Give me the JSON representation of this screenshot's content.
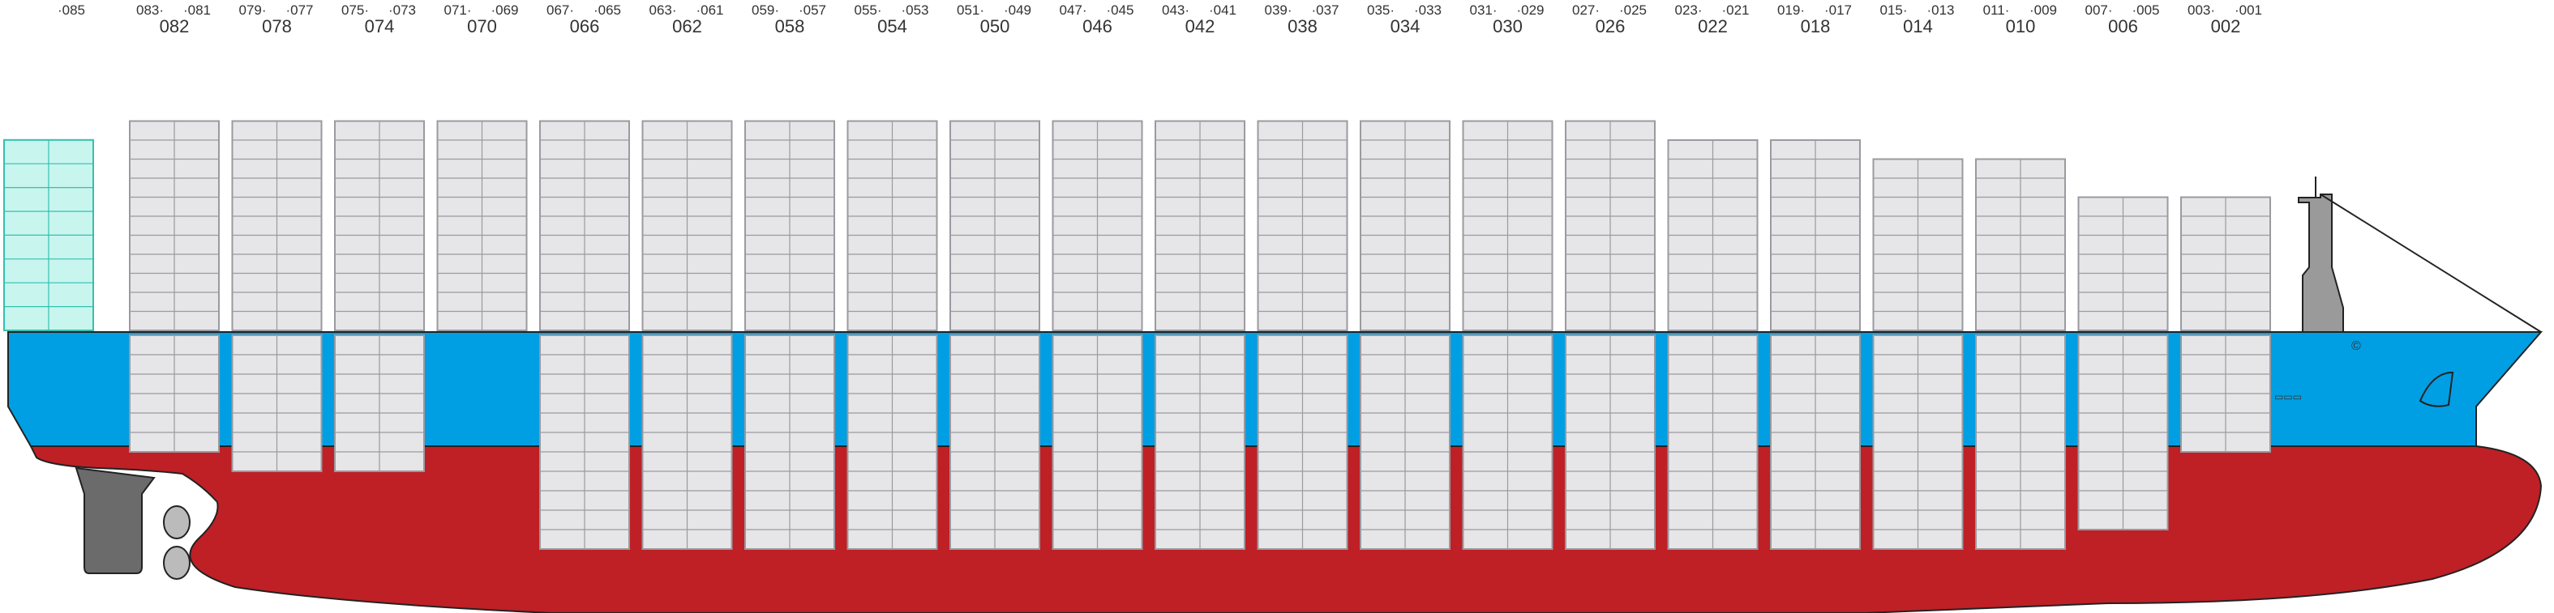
{
  "bays": [
    {
      "right": "·085"
    },
    {
      "left": "083·",
      "right": "·081",
      "label": "082"
    },
    {
      "left": "079·",
      "right": "·077",
      "label": "078"
    },
    {
      "left": "075·",
      "right": "·073",
      "label": "074"
    },
    {
      "left": "071·",
      "right": "·069",
      "label": "070"
    },
    {
      "left": "067·",
      "right": "·065",
      "label": "066"
    },
    {
      "left": "063·",
      "right": "·061",
      "label": "062"
    },
    {
      "left": "059·",
      "right": "·057",
      "label": "058"
    },
    {
      "left": "055·",
      "right": "·053",
      "label": "054"
    },
    {
      "left": "051·",
      "right": "·049",
      "label": "050"
    },
    {
      "left": "047·",
      "right": "·045",
      "label": "046"
    },
    {
      "left": "043·",
      "right": "·041",
      "label": "042"
    },
    {
      "left": "039·",
      "right": "·037",
      "label": "038"
    },
    {
      "left": "035·",
      "right": "·033",
      "label": "034"
    },
    {
      "left": "031·",
      "right": "·029",
      "label": "030"
    },
    {
      "left": "027·",
      "right": "·025",
      "label": "026"
    },
    {
      "left": "023·",
      "right": "·021",
      "label": "022"
    },
    {
      "left": "019·",
      "right": "·017",
      "label": "018"
    },
    {
      "left": "015·",
      "right": "·013",
      "label": "014"
    },
    {
      "left": "011·",
      "right": "·009",
      "label": "010"
    },
    {
      "left": "007·",
      "right": "·005",
      "label": "006"
    },
    {
      "left": "003·",
      "right": "·001",
      "label": "002"
    }
  ]
}
